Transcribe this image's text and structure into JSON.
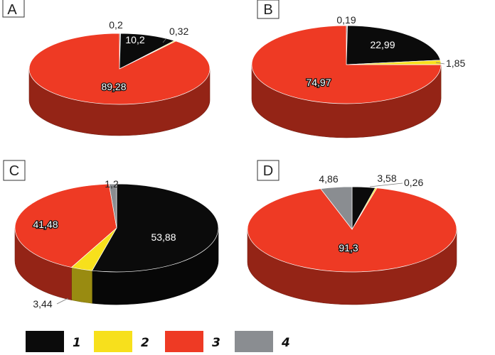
{
  "colors": {
    "1": "#0b0b0b",
    "2": "#f7e01c",
    "3": "#ee3a24",
    "4": "#8a8d91"
  },
  "legend": [
    {
      "key": "1",
      "label": "1"
    },
    {
      "key": "2",
      "label": "2"
    },
    {
      "key": "3",
      "label": "3"
    },
    {
      "key": "4",
      "label": "4"
    }
  ],
  "chart_data": [
    {
      "type": "pie",
      "panel": "A",
      "slices": [
        {
          "key": "4",
          "value": 0.2,
          "label": "0,2"
        },
        {
          "key": "1",
          "value": 10.2,
          "label": "10,2"
        },
        {
          "key": "2",
          "value": 0.32,
          "label": "0,32"
        },
        {
          "key": "3",
          "value": 89.28,
          "label": "89,28"
        }
      ]
    },
    {
      "type": "pie",
      "panel": "B",
      "slices": [
        {
          "key": "4",
          "value": 0.19,
          "label": "0,19"
        },
        {
          "key": "1",
          "value": 22.99,
          "label": "22,99"
        },
        {
          "key": "2",
          "value": 1.85,
          "label": "1,85"
        },
        {
          "key": "3",
          "value": 74.97,
          "label": "74,97"
        }
      ]
    },
    {
      "type": "pie",
      "panel": "C",
      "slices": [
        {
          "key": "1",
          "value": 53.88,
          "label": "53,88"
        },
        {
          "key": "2",
          "value": 3.44,
          "label": "3,44"
        },
        {
          "key": "3",
          "value": 41.48,
          "label": "41,48"
        },
        {
          "key": "4",
          "value": 1.2,
          "label": "1,2"
        }
      ]
    },
    {
      "type": "pie",
      "panel": "D",
      "slices": [
        {
          "key": "1",
          "value": 3.58,
          "label": "3,58"
        },
        {
          "key": "2",
          "value": 0.26,
          "label": "0,26"
        },
        {
          "key": "3",
          "value": 91.3,
          "label": "91,3"
        },
        {
          "key": "4",
          "value": 4.86,
          "label": "4,86"
        }
      ]
    }
  ]
}
